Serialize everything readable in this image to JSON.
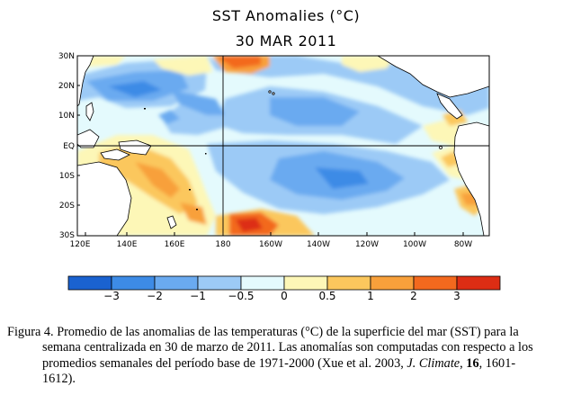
{
  "map": {
    "title": "SST Anomalies (°C)",
    "date": "30 MAR 2011",
    "lat_labels": [
      "30N",
      "20N",
      "10N",
      "EQ",
      "10S",
      "20S",
      "30S"
    ],
    "lon_labels": [
      "120E",
      "140E",
      "160E",
      "180",
      "160W",
      "140W",
      "120W",
      "100W",
      "80W"
    ]
  },
  "colorbar": {
    "colors": [
      "#1a62d0",
      "#3d8be6",
      "#6aaaf0",
      "#9ccaf6",
      "#e4fafd",
      "#fdf7b7",
      "#fbc75d",
      "#f8a03b",
      "#f3691e",
      "#dd2d14",
      "#a20f0c"
    ],
    "labels": [
      "−3",
      "−2",
      "−1",
      "−0.5",
      "0",
      "0.5",
      "1",
      "2",
      "3"
    ]
  },
  "caption": {
    "line1": "Figura 4. Promedio de las anomalias de las temperaturas (°C) de la superficie del mar (SST) para la",
    "line2": "semana centralizada en 30 de marzo de 2011.  Las anomalías son computadas con respecto a los",
    "line3a": "promedios semanales del período base de 1971-2000 (Xue et al. 2003, ",
    "journal": "J. Climate",
    "sep1": ", ",
    "volume": "16",
    "line3b": ", 1601-",
    "line4": "1612)."
  }
}
